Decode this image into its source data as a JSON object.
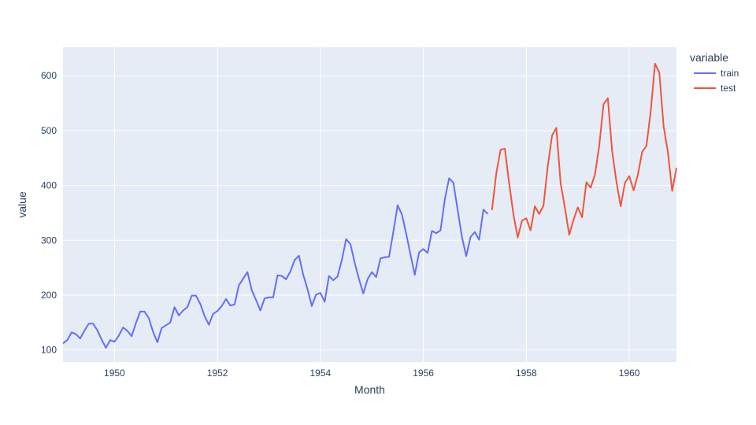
{
  "chart_data": {
    "type": "line",
    "xlabel": "Month",
    "ylabel": "value",
    "legend_title": "variable",
    "legend_position": "right",
    "grid": true,
    "xlim": [
      "1949-01",
      "1960-12"
    ],
    "ylim": [
      78,
      652
    ],
    "x_ticks": [
      "1950",
      "1952",
      "1954",
      "1956",
      "1958",
      "1960"
    ],
    "y_ticks": [
      100,
      200,
      300,
      400,
      500,
      600
    ],
    "colors": {
      "plot_bg": "#e5ecf6",
      "grid": "#ffffff",
      "text": "#2a3f5f"
    },
    "series": [
      {
        "name": "train",
        "color": "#636efa",
        "x": [
          "1949-01",
          "1949-02",
          "1949-03",
          "1949-04",
          "1949-05",
          "1949-06",
          "1949-07",
          "1949-08",
          "1949-09",
          "1949-10",
          "1949-11",
          "1949-12",
          "1950-01",
          "1950-02",
          "1950-03",
          "1950-04",
          "1950-05",
          "1950-06",
          "1950-07",
          "1950-08",
          "1950-09",
          "1950-10",
          "1950-11",
          "1950-12",
          "1951-01",
          "1951-02",
          "1951-03",
          "1951-04",
          "1951-05",
          "1951-06",
          "1951-07",
          "1951-08",
          "1951-09",
          "1951-10",
          "1951-11",
          "1951-12",
          "1952-01",
          "1952-02",
          "1952-03",
          "1952-04",
          "1952-05",
          "1952-06",
          "1952-07",
          "1952-08",
          "1952-09",
          "1952-10",
          "1952-11",
          "1952-12",
          "1953-01",
          "1953-02",
          "1953-03",
          "1953-04",
          "1953-05",
          "1953-06",
          "1953-07",
          "1953-08",
          "1953-09",
          "1953-10",
          "1953-11",
          "1953-12",
          "1954-01",
          "1954-02",
          "1954-03",
          "1954-04",
          "1954-05",
          "1954-06",
          "1954-07",
          "1954-08",
          "1954-09",
          "1954-10",
          "1954-11",
          "1954-12",
          "1955-01",
          "1955-02",
          "1955-03",
          "1955-04",
          "1955-05",
          "1955-06",
          "1955-07",
          "1955-08",
          "1955-09",
          "1955-10",
          "1955-11",
          "1955-12",
          "1956-01",
          "1956-02",
          "1956-03",
          "1956-04",
          "1956-05",
          "1956-06",
          "1956-07",
          "1956-08",
          "1956-09",
          "1956-10",
          "1956-11",
          "1956-12",
          "1957-01",
          "1957-02",
          "1957-03",
          "1957-04"
        ],
        "values": [
          112,
          118,
          132,
          129,
          121,
          135,
          148,
          148,
          136,
          119,
          104,
          118,
          115,
          126,
          141,
          135,
          125,
          149,
          170,
          170,
          158,
          133,
          114,
          140,
          145,
          150,
          178,
          163,
          172,
          178,
          199,
          199,
          184,
          162,
          146,
          166,
          171,
          180,
          193,
          181,
          183,
          218,
          230,
          242,
          209,
          191,
          172,
          194,
          196,
          196,
          236,
          235,
          229,
          243,
          264,
          272,
          237,
          211,
          180,
          201,
          204,
          188,
          235,
          227,
          234,
          264,
          302,
          293,
          259,
          229,
          203,
          229,
          242,
          233,
          267,
          269,
          270,
          315,
          364,
          347,
          312,
          274,
          237,
          278,
          284,
          277,
          317,
          313,
          318,
          374,
          413,
          405,
          355,
          306,
          271,
          306,
          315,
          301,
          356,
          348
        ]
      },
      {
        "name": "test",
        "color": "#ef553b",
        "x": [
          "1957-05",
          "1957-06",
          "1957-07",
          "1957-08",
          "1957-09",
          "1957-10",
          "1957-11",
          "1957-12",
          "1958-01",
          "1958-02",
          "1958-03",
          "1958-04",
          "1958-05",
          "1958-06",
          "1958-07",
          "1958-08",
          "1958-09",
          "1958-10",
          "1958-11",
          "1958-12",
          "1959-01",
          "1959-02",
          "1959-03",
          "1959-04",
          "1959-05",
          "1959-06",
          "1959-07",
          "1959-08",
          "1959-09",
          "1959-10",
          "1959-11",
          "1959-12",
          "1960-01",
          "1960-02",
          "1960-03",
          "1960-04",
          "1960-05",
          "1960-06",
          "1960-07",
          "1960-08",
          "1960-09",
          "1960-10",
          "1960-11",
          "1960-12"
        ],
        "values": [
          355,
          422,
          465,
          467,
          404,
          347,
          305,
          336,
          340,
          318,
          362,
          348,
          363,
          435,
          491,
          505,
          404,
          359,
          310,
          337,
          360,
          342,
          406,
          396,
          420,
          472,
          548,
          559,
          463,
          407,
          362,
          405,
          417,
          391,
          419,
          461,
          472,
          535,
          622,
          606,
          508,
          461,
          390,
          432
        ]
      }
    ]
  }
}
